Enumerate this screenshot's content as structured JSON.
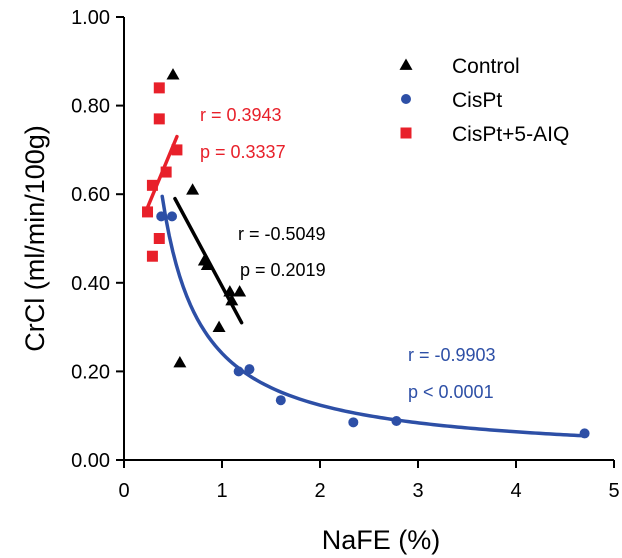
{
  "chart_data": {
    "type": "scatter",
    "xlabel": "NaFE (%)",
    "ylabel": "CrCl (ml/min/100g)",
    "xlim": [
      0,
      5
    ],
    "ylim": [
      0,
      1
    ],
    "x_ticks": [
      0,
      1,
      2,
      3,
      4,
      5
    ],
    "x_tick_labels": [
      "0",
      "1",
      "2",
      "3",
      "4",
      "5"
    ],
    "y_ticks": [
      0,
      0.2,
      0.4,
      0.6,
      0.8,
      1.0
    ],
    "y_tick_labels": [
      "0.00",
      "0.20",
      "0.40",
      "0.60",
      "0.80",
      "1.00"
    ],
    "grid": false,
    "legend_position": "top-right",
    "series": [
      {
        "name": "Control",
        "marker": "triangle",
        "color": "#000000",
        "points": [
          [
            0.5,
            0.87
          ],
          [
            0.7,
            0.61
          ],
          [
            0.82,
            0.45
          ],
          [
            0.85,
            0.44
          ],
          [
            0.97,
            0.3
          ],
          [
            1.08,
            0.38
          ],
          [
            1.18,
            0.38
          ],
          [
            0.57,
            0.22
          ],
          [
            1.1,
            0.36
          ]
        ],
        "fit": {
          "kind": "linear",
          "x_range": [
            0.52,
            1.2
          ],
          "y_range": [
            0.59,
            0.31
          ]
        },
        "annotation": {
          "r": "r = -0.5049",
          "p": "p = 0.2019"
        }
      },
      {
        "name": "CisPt",
        "marker": "circle",
        "color": "#2d4fa6",
        "points": [
          [
            0.38,
            0.55
          ],
          [
            0.49,
            0.55
          ],
          [
            1.17,
            0.2
          ],
          [
            1.28,
            0.205
          ],
          [
            1.6,
            0.135
          ],
          [
            2.34,
            0.085
          ],
          [
            2.78,
            0.088
          ],
          [
            4.7,
            0.06
          ]
        ],
        "fit": {
          "kind": "power",
          "coefficient": 0.241,
          "exponent": -0.96,
          "x_range": [
            0.39,
            4.7
          ]
        },
        "annotation": {
          "r": "r = -0.9903",
          "p": "p < 0.0001"
        }
      },
      {
        "name": "CisPt+5-AIQ",
        "marker": "square",
        "color": "#e8202a",
        "points": [
          [
            0.36,
            0.84
          ],
          [
            0.36,
            0.77
          ],
          [
            0.54,
            0.7
          ],
          [
            0.43,
            0.65
          ],
          [
            0.29,
            0.62
          ],
          [
            0.24,
            0.56
          ],
          [
            0.36,
            0.5
          ],
          [
            0.29,
            0.46
          ]
        ],
        "fit": {
          "kind": "linear",
          "x_range": [
            0.24,
            0.54
          ],
          "y_range": [
            0.57,
            0.73
          ]
        },
        "annotation": {
          "r": "r = 0.3943",
          "p": "p = 0.3337"
        }
      }
    ]
  }
}
